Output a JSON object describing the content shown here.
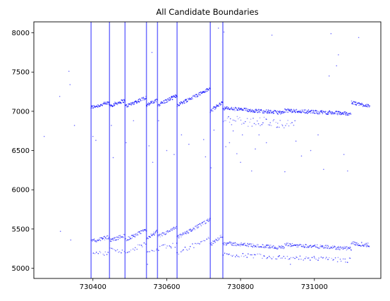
{
  "chart_data": {
    "type": "scatter",
    "title": "All Candidate Boundaries",
    "xlabel": "",
    "ylabel": "",
    "xlim": [
      730240,
      731180
    ],
    "ylim": [
      4870,
      8140
    ],
    "xticks": [
      730400,
      730600,
      730800,
      731000
    ],
    "yticks": [
      5000,
      5500,
      6000,
      6500,
      7000,
      7500,
      8000
    ],
    "xtick_labels": [
      "730400",
      "730600",
      "730800",
      "731000"
    ],
    "ytick_labels": [
      "5000",
      "5500",
      "6000",
      "6500",
      "7000",
      "7500",
      "8000"
    ],
    "grid": false,
    "point_color": "#0000ff",
    "boundary_color": "#7070ff",
    "boundaries": [
      730395,
      730445,
      730487,
      730545,
      730575,
      730628,
      730718,
      730752
    ],
    "upper_band_segments": [
      {
        "x": [
          730395,
          730445
        ],
        "y": [
          7050,
          7110
        ]
      },
      {
        "x": [
          730445,
          730487
        ],
        "y": [
          7070,
          7140
        ]
      },
      {
        "x": [
          730487,
          730545
        ],
        "y": [
          7060,
          7180
        ]
      },
      {
        "x": [
          730545,
          730575
        ],
        "y": [
          7080,
          7140
        ]
      },
      {
        "x": [
          730575,
          730628
        ],
        "y": [
          7080,
          7200
        ]
      },
      {
        "x": [
          730628,
          730718
        ],
        "y": [
          7080,
          7290
        ]
      },
      {
        "x": [
          730718,
          730752
        ],
        "y": [
          7000,
          7120
        ]
      },
      {
        "x": [
          730752,
          730920
        ],
        "y": [
          7040,
          6980
        ]
      },
      {
        "x": [
          730920,
          731100
        ],
        "y": [
          7010,
          6970
        ]
      },
      {
        "x": [
          731100,
          731150
        ],
        "y": [
          7110,
          7070
        ]
      }
    ],
    "lower_band_segments": [
      {
        "x": [
          730395,
          730445
        ],
        "y": [
          5340,
          5400
        ]
      },
      {
        "x": [
          730445,
          730487
        ],
        "y": [
          5350,
          5420
        ]
      },
      {
        "x": [
          730487,
          730545
        ],
        "y": [
          5360,
          5490
        ]
      },
      {
        "x": [
          730545,
          730575
        ],
        "y": [
          5380,
          5470
        ]
      },
      {
        "x": [
          730575,
          730628
        ],
        "y": [
          5400,
          5520
        ]
      },
      {
        "x": [
          730628,
          730718
        ],
        "y": [
          5390,
          5620
        ]
      },
      {
        "x": [
          730718,
          730752
        ],
        "y": [
          5300,
          5420
        ]
      },
      {
        "x": [
          730752,
          730920
        ],
        "y": [
          5320,
          5260
        ]
      },
      {
        "x": [
          730920,
          731100
        ],
        "y": [
          5300,
          5250
        ]
      },
      {
        "x": [
          731100,
          731150
        ],
        "y": [
          5320,
          5290
        ]
      }
    ],
    "sub_band_segments": [
      {
        "x": [
          730400,
          730445
        ],
        "y": [
          5200,
          5180
        ]
      },
      {
        "x": [
          730445,
          730487
        ],
        "y": [
          5250,
          5200
        ]
      },
      {
        "x": [
          730487,
          730545
        ],
        "y": [
          5210,
          5310
        ]
      },
      {
        "x": [
          730545,
          730628
        ],
        "y": [
          5230,
          5300
        ]
      },
      {
        "x": [
          730628,
          730718
        ],
        "y": [
          5200,
          5380
        ]
      },
      {
        "x": [
          730752,
          731100
        ],
        "y": [
          5180,
          5100
        ]
      }
    ],
    "mid_band_segments": [
      {
        "x": [
          730752,
          730850
        ],
        "y": [
          6900,
          6850
        ]
      },
      {
        "x": [
          730850,
          730950
        ],
        "y": [
          6880,
          6820
        ]
      }
    ],
    "scattered_points": [
      {
        "x": 730268,
        "y": 6680
      },
      {
        "x": 730310,
        "y": 7190
      },
      {
        "x": 730312,
        "y": 5470
      },
      {
        "x": 730335,
        "y": 7510
      },
      {
        "x": 730338,
        "y": 7340
      },
      {
        "x": 730340,
        "y": 5360
      },
      {
        "x": 730350,
        "y": 6820
      },
      {
        "x": 730400,
        "y": 6680
      },
      {
        "x": 730408,
        "y": 6630
      },
      {
        "x": 730450,
        "y": 6820
      },
      {
        "x": 730455,
        "y": 6410
      },
      {
        "x": 730490,
        "y": 6600
      },
      {
        "x": 730510,
        "y": 6880
      },
      {
        "x": 730548,
        "y": 5050
      },
      {
        "x": 730552,
        "y": 6560
      },
      {
        "x": 730560,
        "y": 7750
      },
      {
        "x": 730562,
        "y": 6350
      },
      {
        "x": 730578,
        "y": 6880
      },
      {
        "x": 730600,
        "y": 6500
      },
      {
        "x": 730620,
        "y": 6450
      },
      {
        "x": 730640,
        "y": 6700
      },
      {
        "x": 730660,
        "y": 6580
      },
      {
        "x": 730700,
        "y": 6640
      },
      {
        "x": 730705,
        "y": 6420
      },
      {
        "x": 730720,
        "y": 6280
      },
      {
        "x": 730728,
        "y": 6760
      },
      {
        "x": 730740,
        "y": 8060
      },
      {
        "x": 730755,
        "y": 8010
      },
      {
        "x": 730760,
        "y": 6550
      },
      {
        "x": 730770,
        "y": 6600
      },
      {
        "x": 730780,
        "y": 6750
      },
      {
        "x": 730790,
        "y": 6460
      },
      {
        "x": 730800,
        "y": 6350
      },
      {
        "x": 730805,
        "y": 6700
      },
      {
        "x": 730830,
        "y": 6240
      },
      {
        "x": 730840,
        "y": 6520
      },
      {
        "x": 730850,
        "y": 6700
      },
      {
        "x": 730870,
        "y": 6600
      },
      {
        "x": 730885,
        "y": 7970
      },
      {
        "x": 730900,
        "y": 6800
      },
      {
        "x": 730920,
        "y": 6230
      },
      {
        "x": 730935,
        "y": 5050
      },
      {
        "x": 730950,
        "y": 6620
      },
      {
        "x": 730965,
        "y": 6430
      },
      {
        "x": 730990,
        "y": 6500
      },
      {
        "x": 731010,
        "y": 6700
      },
      {
        "x": 731025,
        "y": 6260
      },
      {
        "x": 731040,
        "y": 7450
      },
      {
        "x": 731045,
        "y": 7990
      },
      {
        "x": 731060,
        "y": 7580
      },
      {
        "x": 731065,
        "y": 7720
      },
      {
        "x": 731080,
        "y": 6450
      },
      {
        "x": 731090,
        "y": 6240
      },
      {
        "x": 731100,
        "y": 5230
      },
      {
        "x": 731120,
        "y": 7940
      },
      {
        "x": 731128,
        "y": 5330
      },
      {
        "x": 731145,
        "y": 5320
      }
    ]
  }
}
